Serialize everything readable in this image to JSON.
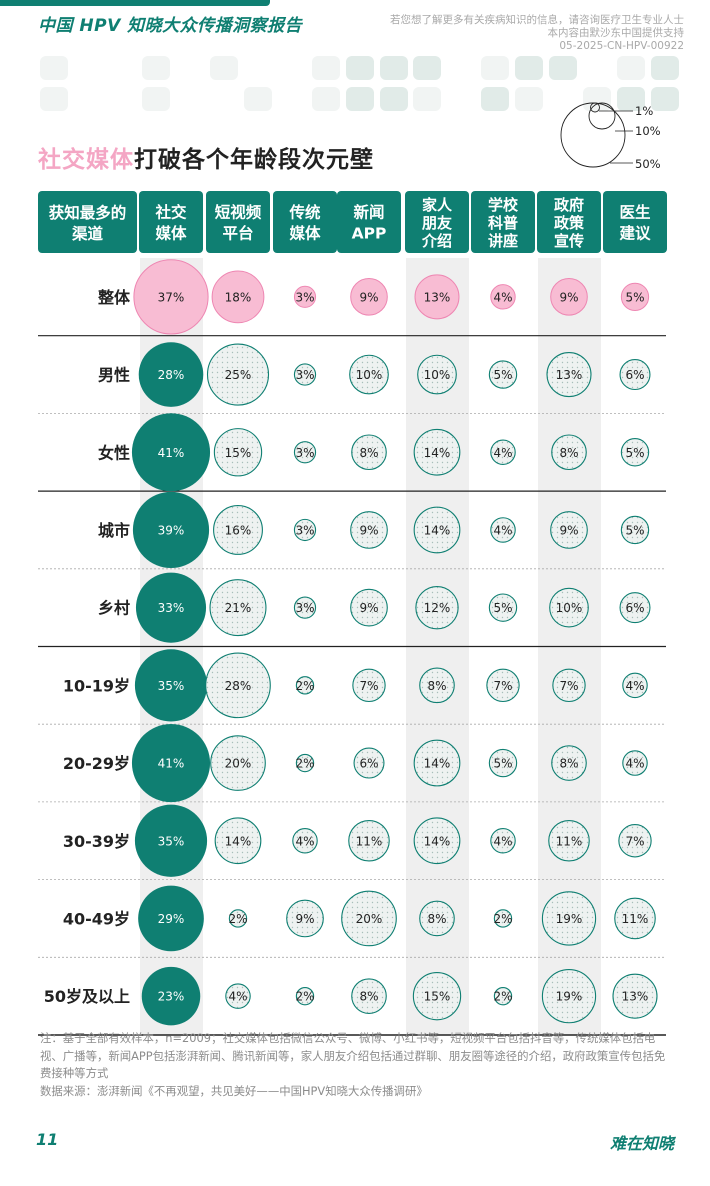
{
  "report_title": "中国 HPV 知晓大众传播洞察报告",
  "disclaimer": [
    "若您想了解更多有关疾病知识的信息，请咨询医疗卫生专业人士",
    "本内容由默沙东中国提供支持",
    "05-2025-CN-HPV-00922"
  ],
  "legend_labels": [
    "1%",
    "10%",
    "50%"
  ],
  "section_title": {
    "highlight": "社交媒体",
    "rest": "打破各个年龄段次元壁"
  },
  "colors": {
    "teal": "#0f7f72",
    "pink_fill": "#f8bcd3",
    "pink_stroke": "#ee86b2",
    "bubble_fill": "#eef2f1",
    "shade": "#efefef",
    "deco_light": "#f1f4f3",
    "deco_mid": "#e1ebe8"
  },
  "chart_data": {
    "type": "bubble-table",
    "row_header_label": "获知最多的渠道",
    "columns": [
      "社交媒体",
      "短视频平台",
      "传统媒体",
      "新闻APP",
      "家人朋友介绍",
      "学校科普讲座",
      "政府政策宣传",
      "医生建议"
    ],
    "column_header_lines": [
      [
        "社交",
        "媒体"
      ],
      [
        "短视频",
        "平台"
      ],
      [
        "传统",
        "媒体"
      ],
      [
        "新闻",
        "APP"
      ],
      [
        "家人",
        "朋友",
        "介绍"
      ],
      [
        "学校",
        "科普",
        "讲座"
      ],
      [
        "政府",
        "政策",
        "宣传"
      ],
      [
        "医生",
        "建议"
      ]
    ],
    "unit": "%",
    "rows": [
      {
        "label": "整体",
        "values": [
          37,
          18,
          3,
          9,
          13,
          4,
          9,
          5
        ]
      },
      {
        "label": "男性",
        "values": [
          28,
          25,
          3,
          10,
          10,
          5,
          13,
          6
        ]
      },
      {
        "label": "女性",
        "values": [
          41,
          15,
          3,
          8,
          14,
          4,
          8,
          5
        ]
      },
      {
        "label": "城市",
        "values": [
          39,
          16,
          3,
          9,
          14,
          4,
          9,
          5
        ]
      },
      {
        "label": "乡村",
        "values": [
          33,
          21,
          3,
          9,
          12,
          5,
          10,
          6
        ]
      },
      {
        "label": "10-19岁",
        "values": [
          35,
          28,
          2,
          7,
          8,
          7,
          7,
          4
        ]
      },
      {
        "label": "20-29岁",
        "values": [
          41,
          20,
          2,
          6,
          14,
          5,
          8,
          4
        ]
      },
      {
        "label": "30-39岁",
        "values": [
          35,
          14,
          4,
          11,
          14,
          4,
          11,
          7
        ]
      },
      {
        "label": "40-49岁",
        "values": [
          29,
          2,
          9,
          20,
          8,
          2,
          19,
          11
        ]
      },
      {
        "label": "50岁及以上",
        "values": [
          23,
          4,
          2,
          8,
          15,
          2,
          19,
          13
        ]
      }
    ]
  },
  "note": "注：基于全部有效样本，n=2009；社交媒体包括微信公众号、微博、小红书等，短视频平台包括抖音等，传统媒体包括电视、广播等，新闻APP包括澎湃新闻、腾讯新闻等，家人朋友介绍包括通过群聊、朋友圈等途径的介绍，政府政策宣传包括免费接种等方式",
  "source": "数据来源：澎湃新闻《不再观望，共见美好——中国HPV知晓大众传播调研》",
  "page_number": "11",
  "brand": "难在知晓"
}
